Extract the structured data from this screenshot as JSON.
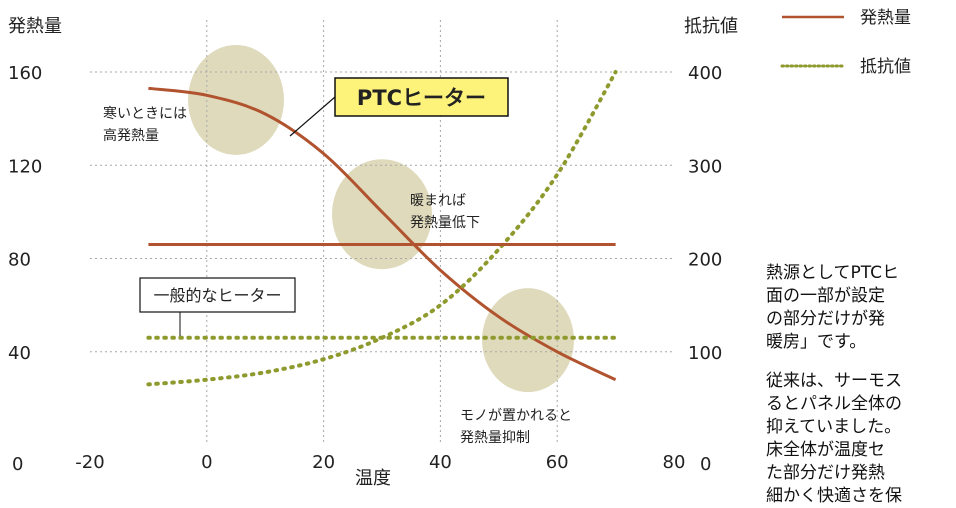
{
  "chart_data": {
    "type": "line",
    "x": [
      -10,
      0,
      10,
      20,
      30,
      40,
      50,
      60,
      70
    ],
    "xlim": [
      -20,
      80
    ],
    "xlabel": "温度",
    "xticks": [
      "-20",
      "0",
      "20",
      "40",
      "60",
      "80"
    ],
    "ylabel_left": "発熱量",
    "ylim_left": [
      0,
      160
    ],
    "yticks_left": [
      "0",
      "40",
      "80",
      "120",
      "160"
    ],
    "ylabel_right": "抵抗値",
    "ylim_right": [
      0,
      400
    ],
    "yticks_right": [
      "0",
      "100",
      "200",
      "300",
      "400"
    ],
    "grid": true,
    "legend_position": "top-right",
    "series": [
      {
        "name": "発熱量",
        "label": "PTCヒーター",
        "axis": "left",
        "style": "solid",
        "color": "#b0532e",
        "values": [
          153,
          150,
          142,
          125,
          100,
          75,
          55,
          40,
          28
        ]
      },
      {
        "name": "抵抗値",
        "label": "PTCヒーター",
        "axis": "right",
        "style": "dotted",
        "color": "#8f9a2e",
        "values": [
          65,
          70,
          78,
          92,
          115,
          150,
          210,
          290,
          400
        ]
      },
      {
        "label": "一般的なヒーター",
        "axis": "left",
        "style": "solid",
        "color": "#b0532e",
        "values": [
          86,
          86,
          86,
          86,
          86,
          86,
          86,
          86,
          86
        ]
      },
      {
        "label": "一般的なヒーター",
        "axis": "right",
        "style": "dotted",
        "color": "#8f9a2e",
        "values": [
          115,
          115,
          115,
          115,
          115,
          115,
          115,
          115,
          115
        ]
      }
    ],
    "labels": {
      "ptc": "PTCヒーター",
      "general": "一般的なヒーター"
    },
    "annotations": [
      {
        "lines": [
          "寒いときには",
          "高発熱量"
        ],
        "x": 5,
        "y": 140
      },
      {
        "lines": [
          "暖まれば",
          "発熱量低下"
        ],
        "x": 32,
        "y": 99
      },
      {
        "lines": [
          "モノが置かれると",
          "発熱量抑制"
        ],
        "x": 55,
        "y": 45
      }
    ]
  },
  "side_text": [
    "熱源としてPTCヒ",
    "面の一部が設定",
    "の部分だけが発",
    "暖房」です。",
    "",
    "従来は、サーモス",
    "るとパネル全体の",
    "抑えていました。",
    "床全体が温度セ",
    "た部分だけ発熱",
    "細かく快適さを保"
  ],
  "colors": {
    "heat": "#b0532e",
    "resistance": "#8f9a2e",
    "highlight_bubble": "#d9d4b0",
    "ptc_label_bg": "#fdf27a",
    "grid": "#a8a8a8"
  }
}
